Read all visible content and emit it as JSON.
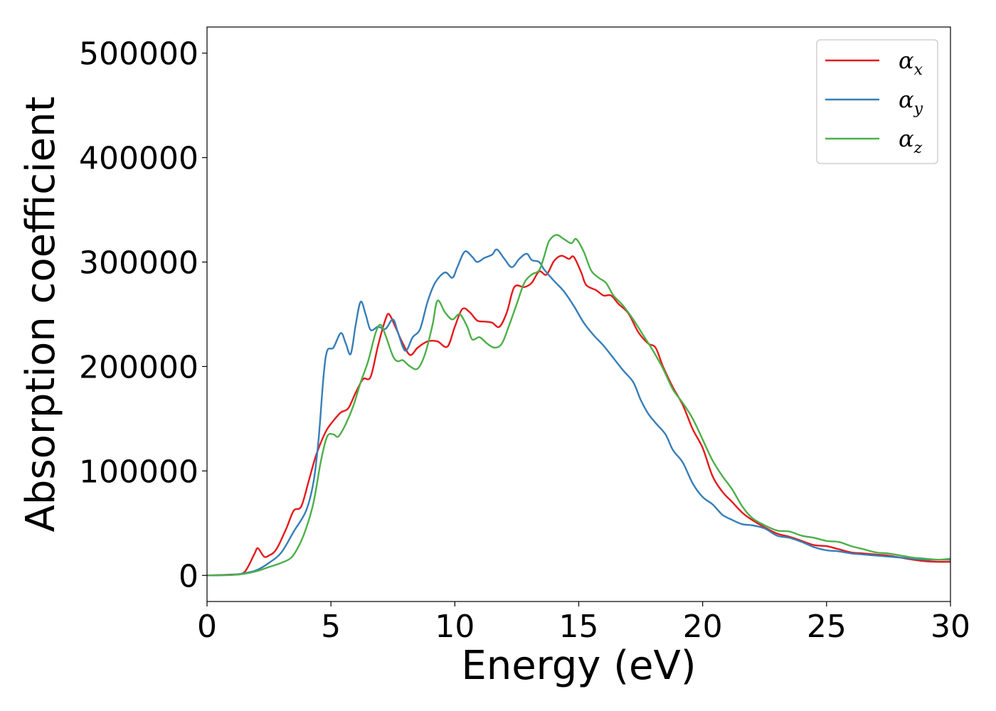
{
  "chart_data": {
    "type": "line",
    "title": "",
    "xlabel": "Energy (eV)",
    "ylabel": "Absorption coefficient",
    "xlim": [
      0,
      30
    ],
    "ylim": [
      -25000,
      525000
    ],
    "xticks": [
      0,
      5,
      10,
      15,
      20,
      25,
      30
    ],
    "yticks": [
      0,
      100000,
      200000,
      300000,
      400000,
      500000
    ],
    "grid": false,
    "legend_position": "top-right",
    "series": [
      {
        "name": "αx",
        "symbol": "α",
        "subscript": "x",
        "color": "#e41a1c",
        "points": [
          [
            0,
            0
          ],
          [
            1,
            800
          ],
          [
            1.5,
            3000
          ],
          [
            1.9,
            20000
          ],
          [
            2.05,
            26000
          ],
          [
            2.3,
            18000
          ],
          [
            2.5,
            19000
          ],
          [
            2.8,
            25000
          ],
          [
            3.2,
            45000
          ],
          [
            3.5,
            62000
          ],
          [
            3.8,
            66000
          ],
          [
            4.1,
            90000
          ],
          [
            4.4,
            115000
          ],
          [
            4.8,
            138000
          ],
          [
            5.1,
            148000
          ],
          [
            5.4,
            156000
          ],
          [
            5.7,
            160000
          ],
          [
            6.0,
            175000
          ],
          [
            6.3,
            188000
          ],
          [
            6.6,
            190000
          ],
          [
            6.9,
            220000
          ],
          [
            7.2,
            245000
          ],
          [
            7.35,
            250000
          ],
          [
            7.6,
            238000
          ],
          [
            7.9,
            222000
          ],
          [
            8.2,
            211000
          ],
          [
            8.5,
            218000
          ],
          [
            8.9,
            224000
          ],
          [
            9.3,
            224000
          ],
          [
            9.7,
            219000
          ],
          [
            10.0,
            238000
          ],
          [
            10.3,
            255000
          ],
          [
            10.6,
            252000
          ],
          [
            10.9,
            244000
          ],
          [
            11.2,
            243000
          ],
          [
            11.5,
            242000
          ],
          [
            11.8,
            238000
          ],
          [
            12.1,
            252000
          ],
          [
            12.4,
            276000
          ],
          [
            12.8,
            276000
          ],
          [
            13.1,
            280000
          ],
          [
            13.4,
            291000
          ],
          [
            13.7,
            288000
          ],
          [
            14.0,
            301000
          ],
          [
            14.3,
            306000
          ],
          [
            14.6,
            303000
          ],
          [
            14.8,
            305000
          ],
          [
            15.1,
            290000
          ],
          [
            15.3,
            278000
          ],
          [
            15.7,
            273000
          ],
          [
            16.0,
            268000
          ],
          [
            16.3,
            268000
          ],
          [
            16.6,
            260000
          ],
          [
            17.0,
            251000
          ],
          [
            17.4,
            233000
          ],
          [
            17.8,
            222000
          ],
          [
            18.1,
            218000
          ],
          [
            18.4,
            200000
          ],
          [
            18.8,
            180000
          ],
          [
            19.2,
            163000
          ],
          [
            19.6,
            140000
          ],
          [
            20.0,
            122000
          ],
          [
            20.4,
            95000
          ],
          [
            20.8,
            80000
          ],
          [
            21.2,
            70000
          ],
          [
            21.6,
            60000
          ],
          [
            22.0,
            53000
          ],
          [
            22.5,
            46000
          ],
          [
            23.0,
            40000
          ],
          [
            23.5,
            37000
          ],
          [
            24.0,
            33000
          ],
          [
            24.5,
            29000
          ],
          [
            25.0,
            28000
          ],
          [
            25.5,
            25000
          ],
          [
            26.0,
            22000
          ],
          [
            26.5,
            21000
          ],
          [
            27.0,
            20000
          ],
          [
            27.5,
            19000
          ],
          [
            28.0,
            17000
          ],
          [
            28.5,
            15000
          ],
          [
            29.0,
            13500
          ],
          [
            29.5,
            13000
          ],
          [
            30,
            13000
          ]
        ]
      },
      {
        "name": "αy",
        "symbol": "α",
        "subscript": "y",
        "color": "#377eb8",
        "points": [
          [
            0,
            0
          ],
          [
            1,
            500
          ],
          [
            1.5,
            2000
          ],
          [
            2.0,
            5000
          ],
          [
            2.5,
            12000
          ],
          [
            3.0,
            22000
          ],
          [
            3.5,
            42000
          ],
          [
            4.0,
            62000
          ],
          [
            4.3,
            90000
          ],
          [
            4.5,
            130000
          ],
          [
            4.7,
            190000
          ],
          [
            4.85,
            215000
          ],
          [
            5.1,
            218000
          ],
          [
            5.4,
            232000
          ],
          [
            5.6,
            222000
          ],
          [
            5.8,
            212000
          ],
          [
            6.0,
            240000
          ],
          [
            6.2,
            262000
          ],
          [
            6.4,
            250000
          ],
          [
            6.6,
            235000
          ],
          [
            6.9,
            238000
          ],
          [
            7.2,
            236000
          ],
          [
            7.5,
            245000
          ],
          [
            7.7,
            233000
          ],
          [
            8.0,
            215000
          ],
          [
            8.3,
            228000
          ],
          [
            8.6,
            236000
          ],
          [
            8.9,
            262000
          ],
          [
            9.2,
            280000
          ],
          [
            9.6,
            290000
          ],
          [
            9.9,
            285000
          ],
          [
            10.1,
            295000
          ],
          [
            10.4,
            310000
          ],
          [
            10.7,
            305000
          ],
          [
            10.9,
            300000
          ],
          [
            11.2,
            304000
          ],
          [
            11.5,
            307000
          ],
          [
            11.7,
            312000
          ],
          [
            12.0,
            303000
          ],
          [
            12.3,
            295000
          ],
          [
            12.6,
            303000
          ],
          [
            12.9,
            308000
          ],
          [
            13.1,
            302000
          ],
          [
            13.4,
            300000
          ],
          [
            13.6,
            293000
          ],
          [
            14.0,
            282000
          ],
          [
            14.4,
            272000
          ],
          [
            14.8,
            258000
          ],
          [
            15.2,
            242000
          ],
          [
            15.6,
            230000
          ],
          [
            16.0,
            220000
          ],
          [
            16.4,
            208000
          ],
          [
            16.8,
            196000
          ],
          [
            17.2,
            185000
          ],
          [
            17.5,
            168000
          ],
          [
            17.8,
            155000
          ],
          [
            18.1,
            146000
          ],
          [
            18.5,
            135000
          ],
          [
            18.8,
            120000
          ],
          [
            19.2,
            108000
          ],
          [
            19.6,
            88000
          ],
          [
            20.0,
            75000
          ],
          [
            20.4,
            68000
          ],
          [
            20.8,
            58000
          ],
          [
            21.2,
            53000
          ],
          [
            21.6,
            49000
          ],
          [
            22.0,
            48000
          ],
          [
            22.5,
            45000
          ],
          [
            23.0,
            38000
          ],
          [
            23.5,
            36000
          ],
          [
            24.0,
            32000
          ],
          [
            24.5,
            27000
          ],
          [
            25.0,
            24000
          ],
          [
            25.5,
            23000
          ],
          [
            26.0,
            21000
          ],
          [
            26.5,
            20000
          ],
          [
            27.0,
            19000
          ],
          [
            27.5,
            18000
          ],
          [
            28.0,
            17000
          ],
          [
            28.5,
            16000
          ],
          [
            29.0,
            15000
          ],
          [
            29.5,
            15000
          ],
          [
            30,
            15000
          ]
        ]
      },
      {
        "name": "αz",
        "symbol": "α",
        "subscript": "z",
        "color": "#4daf4a",
        "points": [
          [
            0,
            0
          ],
          [
            1,
            400
          ],
          [
            1.5,
            1500
          ],
          [
            2.0,
            4000
          ],
          [
            2.5,
            8000
          ],
          [
            3.0,
            12000
          ],
          [
            3.4,
            17000
          ],
          [
            3.7,
            28000
          ],
          [
            4.0,
            45000
          ],
          [
            4.3,
            70000
          ],
          [
            4.6,
            110000
          ],
          [
            4.85,
            133000
          ],
          [
            5.1,
            135000
          ],
          [
            5.3,
            133000
          ],
          [
            5.6,
            145000
          ],
          [
            5.9,
            162000
          ],
          [
            6.2,
            185000
          ],
          [
            6.5,
            205000
          ],
          [
            6.8,
            232000
          ],
          [
            7.0,
            240000
          ],
          [
            7.2,
            230000
          ],
          [
            7.5,
            210000
          ],
          [
            7.7,
            205000
          ],
          [
            7.9,
            206000
          ],
          [
            8.2,
            200000
          ],
          [
            8.5,
            198000
          ],
          [
            8.8,
            212000
          ],
          [
            9.1,
            240000
          ],
          [
            9.3,
            263000
          ],
          [
            9.6,
            252000
          ],
          [
            9.9,
            245000
          ],
          [
            10.2,
            250000
          ],
          [
            10.5,
            238000
          ],
          [
            10.7,
            226000
          ],
          [
            11.0,
            228000
          ],
          [
            11.3,
            222000
          ],
          [
            11.6,
            218000
          ],
          [
            11.9,
            222000
          ],
          [
            12.2,
            240000
          ],
          [
            12.5,
            260000
          ],
          [
            12.8,
            280000
          ],
          [
            13.1,
            288000
          ],
          [
            13.4,
            292000
          ],
          [
            13.6,
            305000
          ],
          [
            13.8,
            320000
          ],
          [
            14.1,
            326000
          ],
          [
            14.4,
            322000
          ],
          [
            14.7,
            318000
          ],
          [
            14.9,
            322000
          ],
          [
            15.2,
            310000
          ],
          [
            15.5,
            292000
          ],
          [
            15.8,
            285000
          ],
          [
            16.1,
            280000
          ],
          [
            16.4,
            268000
          ],
          [
            16.8,
            258000
          ],
          [
            17.2,
            245000
          ],
          [
            17.6,
            230000
          ],
          [
            18.0,
            215000
          ],
          [
            18.4,
            198000
          ],
          [
            18.8,
            178000
          ],
          [
            19.2,
            165000
          ],
          [
            19.6,
            150000
          ],
          [
            20.0,
            130000
          ],
          [
            20.4,
            110000
          ],
          [
            20.8,
            95000
          ],
          [
            21.2,
            82000
          ],
          [
            21.6,
            66000
          ],
          [
            22.0,
            55000
          ],
          [
            22.5,
            48000
          ],
          [
            23.0,
            43000
          ],
          [
            23.5,
            42000
          ],
          [
            24.0,
            38000
          ],
          [
            24.5,
            36000
          ],
          [
            25.0,
            33000
          ],
          [
            25.5,
            32000
          ],
          [
            26.0,
            28000
          ],
          [
            26.5,
            25000
          ],
          [
            27.0,
            22000
          ],
          [
            27.5,
            21000
          ],
          [
            28.0,
            19000
          ],
          [
            28.5,
            17000
          ],
          [
            29.0,
            16000
          ],
          [
            29.5,
            15000
          ],
          [
            30,
            16000
          ]
        ]
      }
    ]
  }
}
